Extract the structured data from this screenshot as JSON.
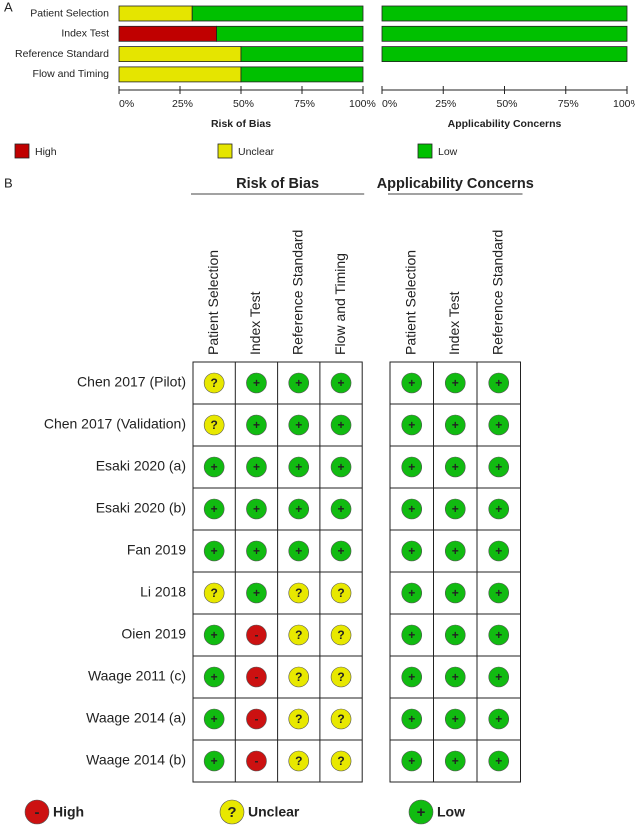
{
  "panel_labels": {
    "a": "A",
    "b": "B"
  },
  "chart_data": [
    {
      "type": "bar",
      "orientation": "horizontal",
      "stacked": true,
      "categories": [
        "Patient Selection",
        "Index Test",
        "Reference Standard",
        "Flow and Timing"
      ],
      "series": [
        {
          "name": "High",
          "color": "#c00000",
          "values": [
            0,
            40,
            0,
            0
          ]
        },
        {
          "name": "Unclear",
          "color": "#e5e500",
          "values": [
            30,
            0,
            50,
            50
          ]
        },
        {
          "name": "Low",
          "color": "#00c000",
          "values": [
            70,
            60,
            50,
            50
          ]
        }
      ],
      "xlabel": "Risk of Bias",
      "xlim": [
        0,
        100
      ],
      "xticks": [
        {
          "value": 0,
          "label": "0%"
        },
        {
          "value": 25,
          "label": "25%"
        },
        {
          "value": 50,
          "label": "50%"
        },
        {
          "value": 75,
          "label": "75%"
        },
        {
          "value": 100,
          "label": "100%"
        }
      ]
    },
    {
      "type": "bar",
      "orientation": "horizontal",
      "stacked": true,
      "values": [
        100,
        100,
        100
      ],
      "color": "#00c000",
      "xlabel": "Applicability Concerns",
      "xlim": [
        0,
        100
      ],
      "xticks": [
        {
          "value": 0,
          "label": "0%"
        },
        {
          "value": 25,
          "label": "25%"
        },
        {
          "value": 50,
          "label": "50%"
        },
        {
          "value": 75,
          "label": "75%"
        },
        {
          "value": 100,
          "label": "100%"
        }
      ]
    }
  ],
  "table": {
    "groups": [
      {
        "title": "Risk of Bias",
        "domains": [
          "Patient Selection",
          "Index Test",
          "Reference Standard",
          "Flow and Timing"
        ]
      },
      {
        "title": "Applicability Concerns",
        "domains": [
          "Patient Selection",
          "Index Test",
          "Reference Standard"
        ]
      }
    ],
    "rows": [
      {
        "study": "Chen 2017 (Pilot)",
        "judgments": [
          [
            "?",
            "+",
            "+",
            "+"
          ],
          [
            "+",
            "+",
            "+"
          ]
        ]
      },
      {
        "study": "Chen 2017 (Validation)",
        "judgments": [
          [
            "?",
            "+",
            "+",
            "+"
          ],
          [
            "+",
            "+",
            "+"
          ]
        ]
      },
      {
        "study": "Esaki 2020 (a)",
        "judgments": [
          [
            "+",
            "+",
            "+",
            "+"
          ],
          [
            "+",
            "+",
            "+"
          ]
        ]
      },
      {
        "study": "Esaki 2020 (b)",
        "judgments": [
          [
            "+",
            "+",
            "+",
            "+"
          ],
          [
            "+",
            "+",
            "+"
          ]
        ]
      },
      {
        "study": "Fan 2019",
        "judgments": [
          [
            "+",
            "+",
            "+",
            "+"
          ],
          [
            "+",
            "+",
            "+"
          ]
        ]
      },
      {
        "study": "Li 2018",
        "judgments": [
          [
            "?",
            "+",
            "?",
            "?"
          ],
          [
            "+",
            "+",
            "+"
          ]
        ]
      },
      {
        "study": "Oien 2019",
        "judgments": [
          [
            "+",
            "-",
            "?",
            "?"
          ],
          [
            "+",
            "+",
            "+"
          ]
        ]
      },
      {
        "study": "Waage 2011 (c)",
        "judgments": [
          [
            "+",
            "-",
            "?",
            "?"
          ],
          [
            "+",
            "+",
            "+"
          ]
        ]
      },
      {
        "study": "Waage 2014 (a)",
        "judgments": [
          [
            "+",
            "-",
            "?",
            "?"
          ],
          [
            "+",
            "+",
            "+"
          ]
        ]
      },
      {
        "study": "Waage 2014 (b)",
        "judgments": [
          [
            "+",
            "-",
            "?",
            "?"
          ],
          [
            "+",
            "+",
            "+"
          ]
        ]
      }
    ],
    "legend": [
      {
        "symbol": "-",
        "label": "High",
        "color": "#cc1111"
      },
      {
        "symbol": "?",
        "label": "Unclear",
        "color": "#e8e800"
      },
      {
        "symbol": "+",
        "label": "Low",
        "color": "#11bb11"
      }
    ]
  }
}
